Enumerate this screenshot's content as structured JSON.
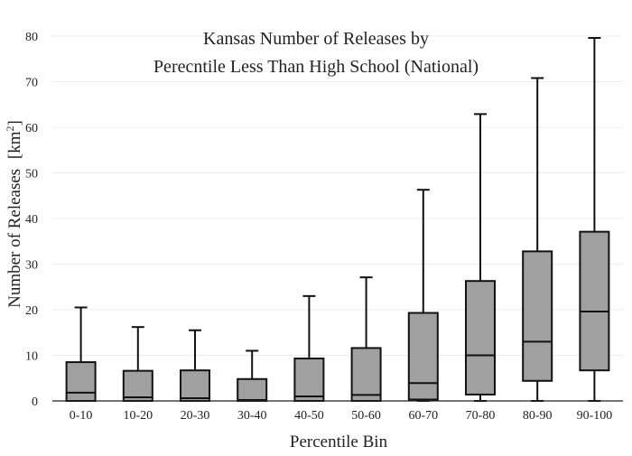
{
  "chart_data": {
    "type": "box",
    "title_lines": [
      "Kansas Number of Releases by",
      "Perecntile Less Than High School (National)"
    ],
    "xlabel": "Percentile Bin",
    "ylabel": "Number of Releases",
    "ylabel_unit_base": "[km",
    "ylabel_unit_sup": "2",
    "ylabel_unit_close": "]",
    "ylim": [
      0,
      80
    ],
    "yticks": [
      0,
      10,
      20,
      30,
      40,
      50,
      60,
      70,
      80
    ],
    "grid": true,
    "box_color": "#a0a0a0",
    "categories": [
      "0-10",
      "10-20",
      "20-30",
      "30-40",
      "40-50",
      "50-60",
      "60-70",
      "70-80",
      "80-90",
      "90-100"
    ],
    "boxes": [
      {
        "min": 0,
        "q1": 0,
        "median": 1.8,
        "q3": 8.5,
        "max": 20.5
      },
      {
        "min": 0,
        "q1": 0,
        "median": 0.8,
        "q3": 6.6,
        "max": 16.2
      },
      {
        "min": 0,
        "q1": 0,
        "median": 0.6,
        "q3": 6.7,
        "max": 15.5
      },
      {
        "min": 0,
        "q1": 0,
        "median": 0.2,
        "q3": 4.8,
        "max": 11.0
      },
      {
        "min": 0,
        "q1": 0,
        "median": 1.0,
        "q3": 9.3,
        "max": 23.0
      },
      {
        "min": 0,
        "q1": 0,
        "median": 1.3,
        "q3": 11.6,
        "max": 27.1
      },
      {
        "min": 0,
        "q1": 0.3,
        "median": 3.9,
        "q3": 19.3,
        "max": 46.3
      },
      {
        "min": 0,
        "q1": 1.4,
        "median": 10.0,
        "q3": 26.3,
        "max": 62.9
      },
      {
        "min": 0,
        "q1": 4.4,
        "median": 13.0,
        "q3": 32.8,
        "max": 70.8
      },
      {
        "min": 0,
        "q1": 6.7,
        "median": 19.6,
        "q3": 37.1,
        "max": 79.6
      }
    ]
  }
}
